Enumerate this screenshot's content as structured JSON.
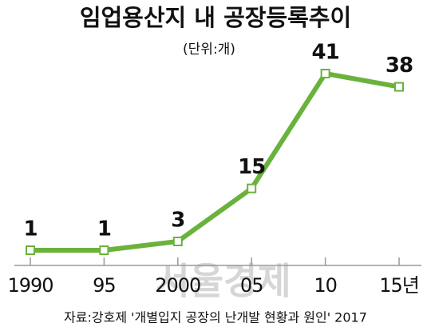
{
  "chart_data": {
    "type": "line",
    "title": "임업용산지 내 공장등록추이",
    "subtitle": "(단위:개)",
    "categories": [
      "1990",
      "95",
      "2000",
      "05",
      "10",
      "15년"
    ],
    "series": [
      {
        "name": "공장등록",
        "color": "#6ab23c",
        "values": [
          1,
          1,
          3,
          15,
          41,
          38
        ]
      }
    ],
    "source": "자료:강호제 '개별입지 공장의 난개발 현황과 원인' 2017",
    "watermark": "서울경제"
  }
}
